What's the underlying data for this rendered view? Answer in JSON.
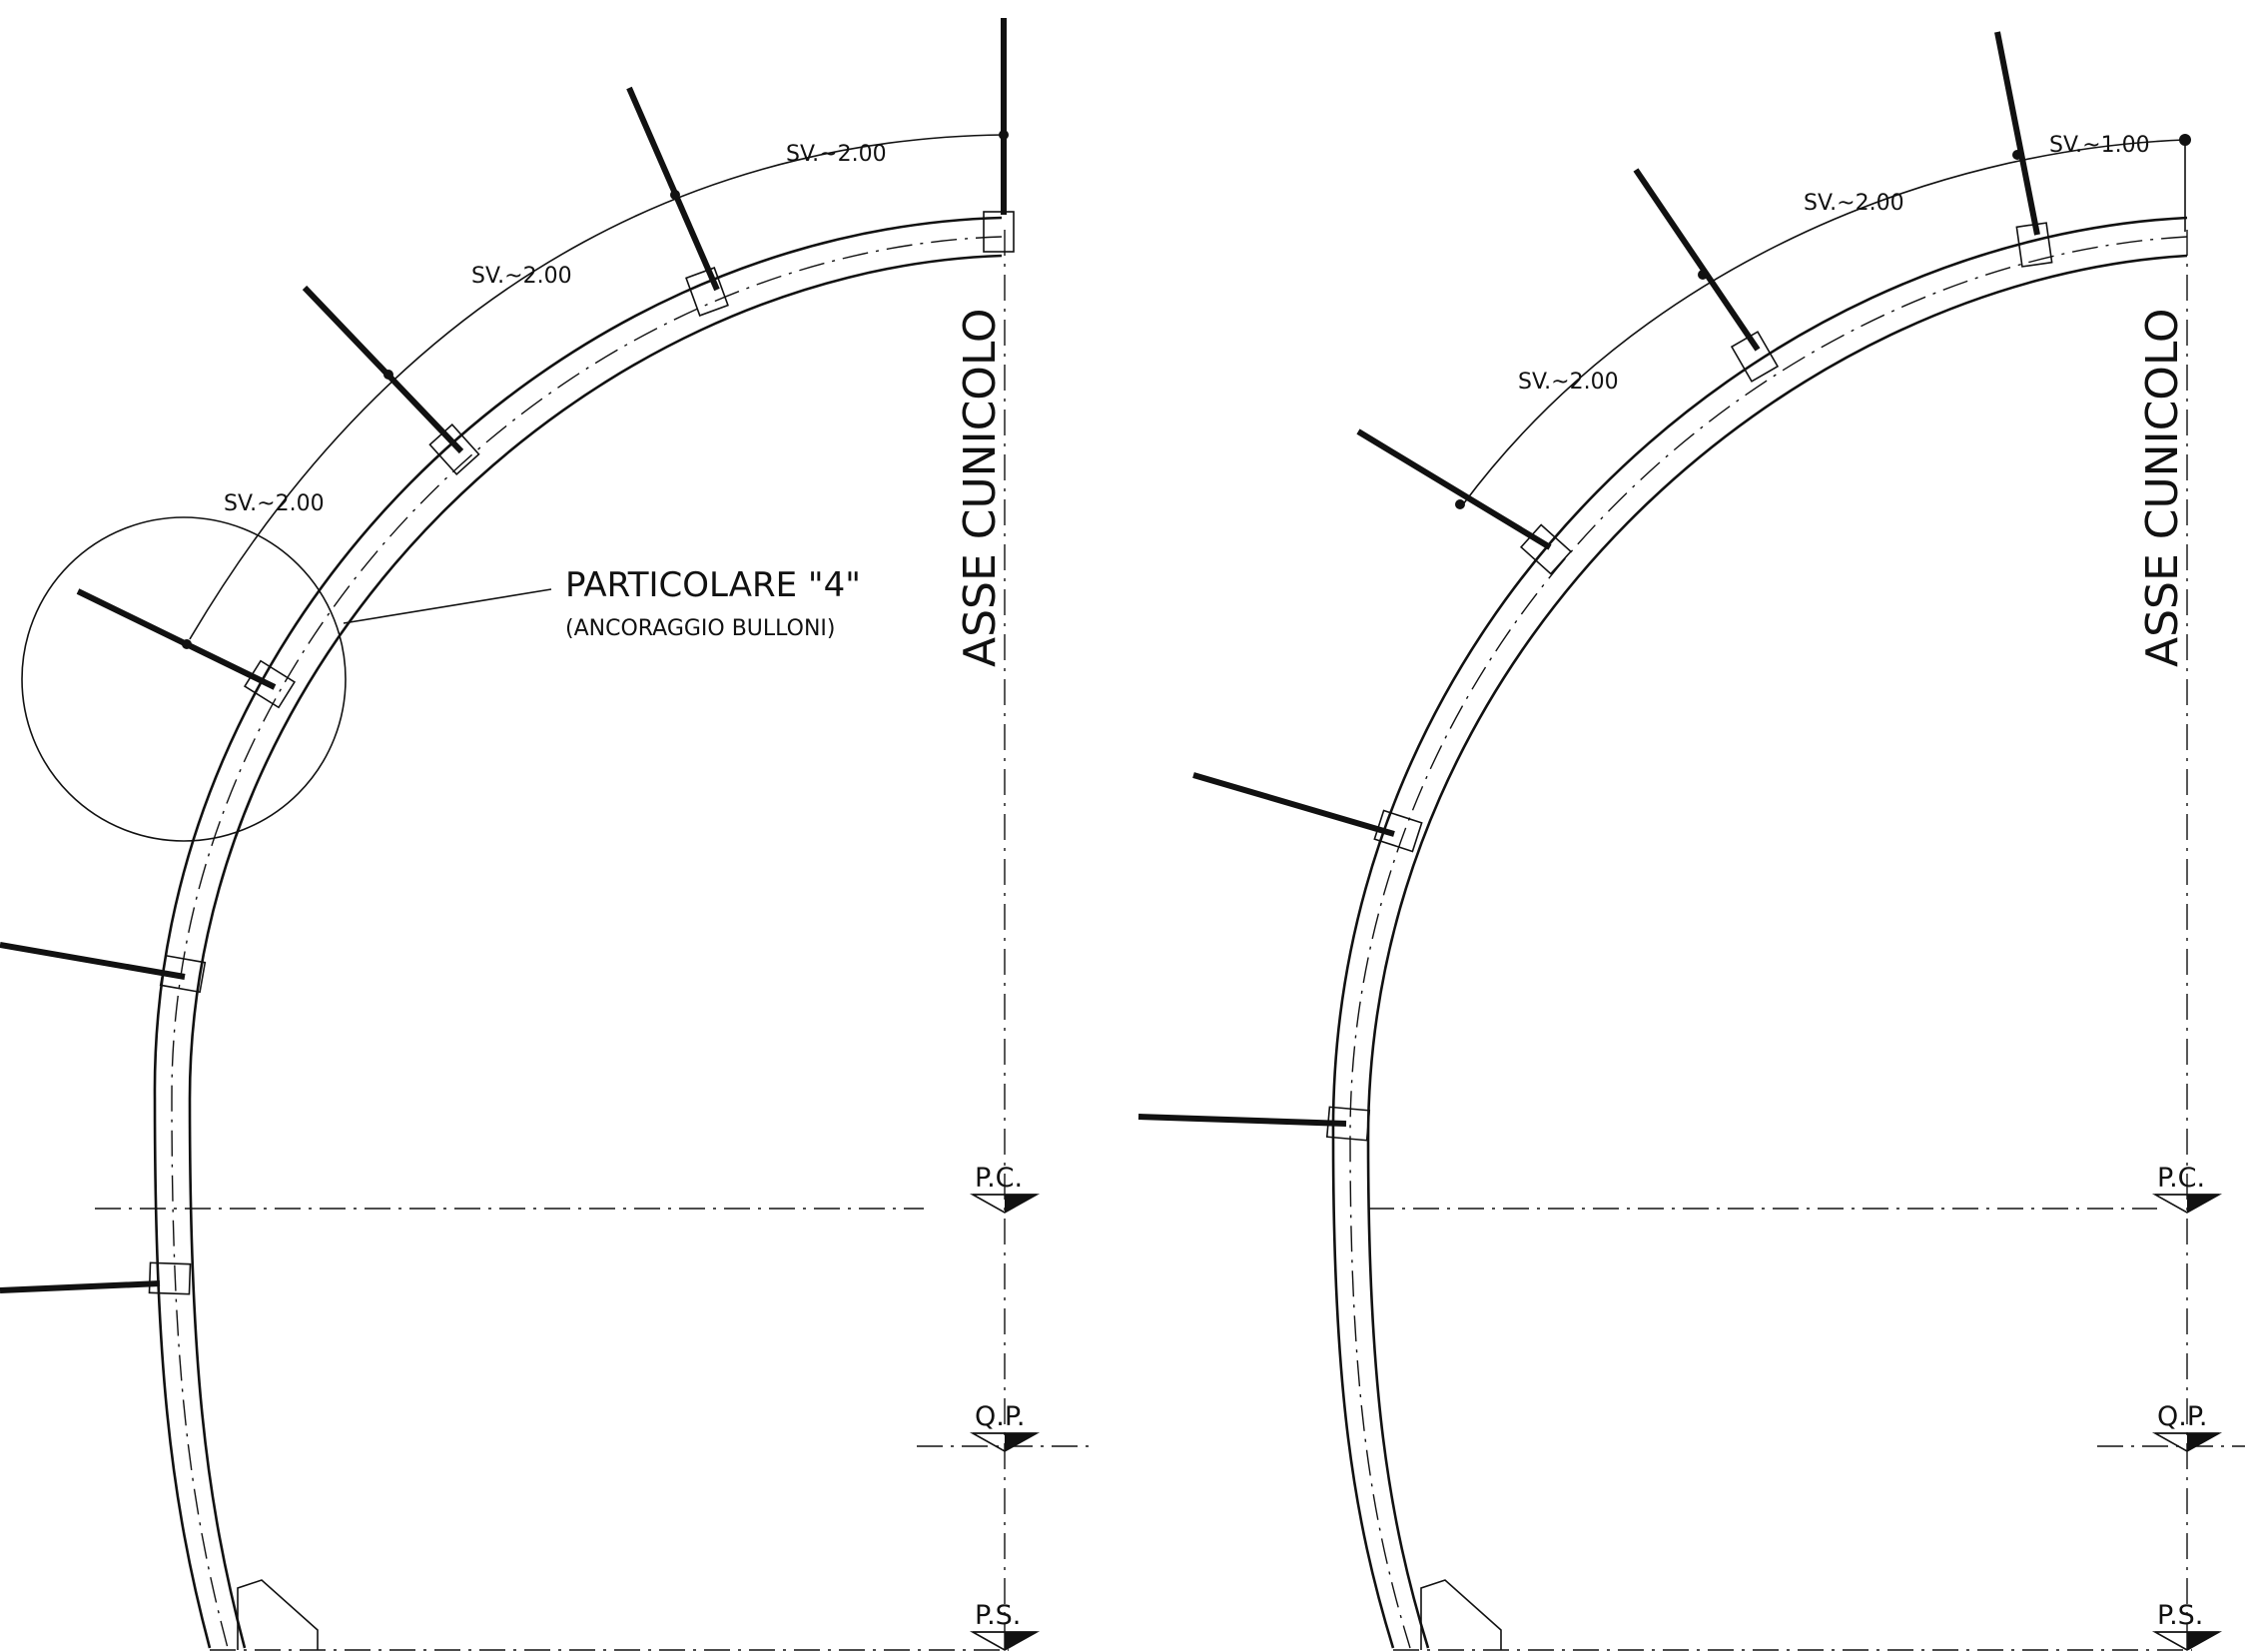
{
  "labels": {
    "axis_left": "ASSE CUNICOLO",
    "axis_right": "ASSE CUNICOLO",
    "detail_title": "PARTICOLARE \"4\"",
    "detail_subtitle": "(ANCORAGGIO BULLONI)",
    "pc": "P.C.",
    "qp": "Q.P.",
    "ps": "P.S."
  },
  "spacing_labels": {
    "left_1": "SV.~2.00",
    "left_2": "SV.~2.00",
    "left_3": "SV.~2.00",
    "right_1": "SV.~1.00",
    "right_2": "SV.~2.00",
    "right_3": "SV.~2.00"
  },
  "colors": {
    "line": "#111111",
    "background": "#ffffff"
  }
}
